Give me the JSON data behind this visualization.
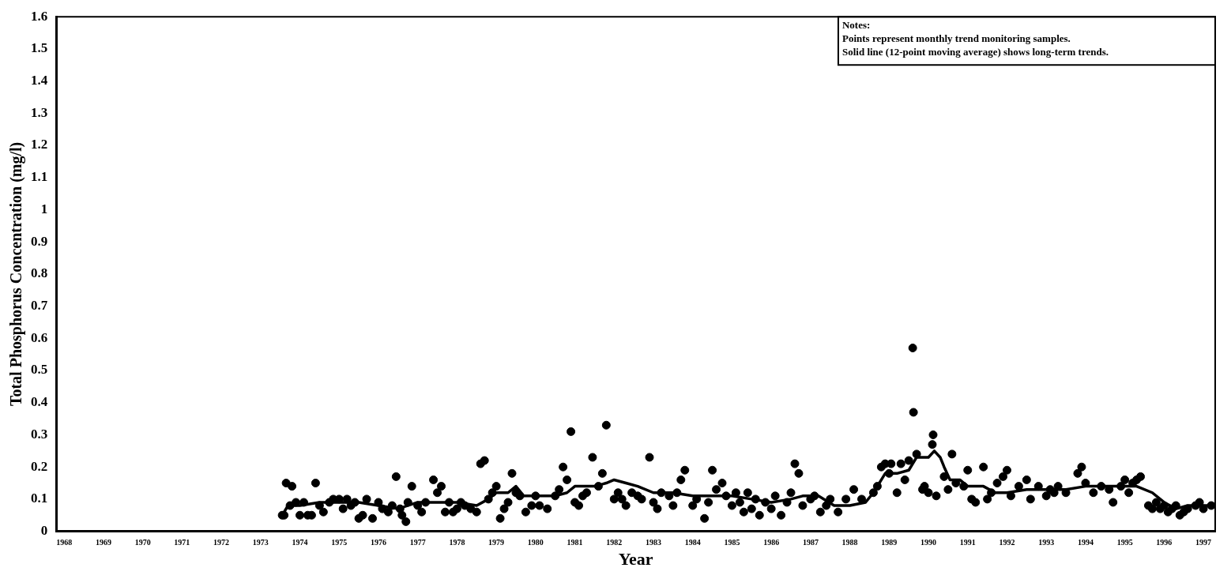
{
  "chart_data": {
    "type": "scatter",
    "xlabel": "Year",
    "ylabel": "Total Phosphorus Concentration (mg/l)",
    "annotations": [
      "Notes:",
      "Points represent monthly trend monitoring samples.",
      "Solid line (12-point moving average) shows long-term trends."
    ],
    "xlim": [
      1967.8,
      1997.3
    ],
    "xticks": [
      1968,
      1969,
      1970,
      1971,
      1972,
      1973,
      1974,
      1975,
      1976,
      1977,
      1978,
      1979,
      1980,
      1981,
      1982,
      1983,
      1984,
      1985,
      1986,
      1987,
      1988,
      1989,
      1990,
      1991,
      1992,
      1993,
      1994,
      1995,
      1996,
      1997
    ],
    "ylim": [
      0,
      1.6
    ],
    "yticks": [
      0,
      0.1,
      0.2,
      0.3,
      0.4,
      0.5,
      0.6,
      0.7,
      0.8,
      0.9,
      1,
      1.1,
      1.2,
      1.3,
      1.4,
      1.5,
      1.6
    ],
    "grid": false,
    "legend": false,
    "marker": "circle",
    "series": [
      {
        "color": "#000000",
        "x": [
          1973.55,
          1973.6,
          1973.65,
          1973.75,
          1973.8,
          1973.9,
          1974.0,
          1974.1,
          1974.2,
          1974.3,
          1974.4,
          1974.5,
          1974.6,
          1974.75,
          1974.85,
          1975.0,
          1975.1,
          1975.2,
          1975.3,
          1975.4,
          1975.5,
          1975.6,
          1975.7,
          1975.85,
          1976.0,
          1976.1,
          1976.25,
          1976.35,
          1976.45,
          1976.55,
          1976.6,
          1976.7,
          1976.75,
          1976.85,
          1977.0,
          1977.1,
          1977.2,
          1977.4,
          1977.5,
          1977.6,
          1977.7,
          1977.8,
          1977.9,
          1978.0,
          1978.1,
          1978.2,
          1978.35,
          1978.5,
          1978.6,
          1978.7,
          1978.8,
          1978.9,
          1979.0,
          1979.1,
          1979.2,
          1979.3,
          1979.4,
          1979.5,
          1979.6,
          1979.75,
          1979.9,
          1980.0,
          1980.1,
          1980.3,
          1980.5,
          1980.6,
          1980.7,
          1980.8,
          1980.9,
          1981.0,
          1981.1,
          1981.2,
          1981.3,
          1981.45,
          1981.6,
          1981.7,
          1981.8,
          1982.0,
          1982.1,
          1982.2,
          1982.3,
          1982.45,
          1982.6,
          1982.7,
          1982.9,
          1983.0,
          1983.1,
          1983.2,
          1983.4,
          1983.5,
          1983.6,
          1983.7,
          1983.8,
          1984.0,
          1984.1,
          1984.3,
          1984.4,
          1984.5,
          1984.6,
          1984.75,
          1984.85,
          1985.0,
          1985.1,
          1985.2,
          1985.3,
          1985.4,
          1985.5,
          1985.6,
          1985.7,
          1985.85,
          1986.0,
          1986.1,
          1986.25,
          1986.4,
          1986.5,
          1986.6,
          1986.7,
          1986.8,
          1987.0,
          1987.1,
          1987.25,
          1987.4,
          1987.5,
          1987.7,
          1987.9,
          1988.1,
          1988.3,
          1988.6,
          1988.7,
          1988.8,
          1988.9,
          1989.0,
          1989.05,
          1989.2,
          1989.3,
          1989.4,
          1989.5,
          1989.6,
          1989.62,
          1989.7,
          1989.85,
          1989.9,
          1990.0,
          1990.1,
          1990.12,
          1990.2,
          1990.4,
          1990.5,
          1990.6,
          1990.7,
          1990.9,
          1991.0,
          1991.1,
          1991.2,
          1991.4,
          1991.5,
          1991.6,
          1991.75,
          1991.9,
          1992.0,
          1992.1,
          1992.3,
          1992.5,
          1992.6,
          1992.8,
          1993.0,
          1993.1,
          1993.2,
          1993.3,
          1993.5,
          1993.8,
          1993.9,
          1994.0,
          1994.2,
          1994.4,
          1994.6,
          1994.7,
          1994.9,
          1995.0,
          1995.1,
          1995.2,
          1995.3,
          1995.4,
          1995.6,
          1995.7,
          1995.8,
          1995.9,
          1996.0,
          1996.1,
          1996.2,
          1996.3,
          1996.4,
          1996.5,
          1996.6,
          1996.8,
          1996.9,
          1997.0,
          1997.2
        ],
        "values": [
          0.05,
          0.05,
          0.15,
          0.08,
          0.14,
          0.09,
          0.05,
          0.09,
          0.05,
          0.05,
          0.15,
          0.08,
          0.06,
          0.09,
          0.1,
          0.1,
          0.07,
          0.1,
          0.08,
          0.09,
          0.04,
          0.05,
          0.1,
          0.04,
          0.09,
          0.07,
          0.06,
          0.08,
          0.17,
          0.07,
          0.05,
          0.03,
          0.09,
          0.14,
          0.08,
          0.06,
          0.09,
          0.16,
          0.12,
          0.14,
          0.06,
          0.09,
          0.06,
          0.07,
          0.09,
          0.08,
          0.07,
          0.06,
          0.21,
          0.22,
          0.1,
          0.12,
          0.14,
          0.04,
          0.07,
          0.09,
          0.18,
          0.12,
          0.11,
          0.06,
          0.08,
          0.11,
          0.08,
          0.07,
          0.11,
          0.13,
          0.2,
          0.16,
          0.31,
          0.09,
          0.08,
          0.11,
          0.12,
          0.23,
          0.14,
          0.18,
          0.33,
          0.1,
          0.12,
          0.1,
          0.08,
          0.12,
          0.11,
          0.1,
          0.23,
          0.09,
          0.07,
          0.12,
          0.11,
          0.08,
          0.12,
          0.16,
          0.19,
          0.08,
          0.1,
          0.04,
          0.09,
          0.19,
          0.13,
          0.15,
          0.11,
          0.08,
          0.12,
          0.09,
          0.06,
          0.12,
          0.07,
          0.1,
          0.05,
          0.09,
          0.07,
          0.11,
          0.05,
          0.09,
          0.12,
          0.21,
          0.18,
          0.08,
          0.1,
          0.11,
          0.06,
          0.08,
          0.1,
          0.06,
          0.1,
          0.13,
          0.1,
          0.12,
          0.14,
          0.2,
          0.21,
          0.18,
          0.21,
          0.12,
          0.21,
          0.16,
          0.22,
          0.57,
          0.37,
          0.24,
          0.13,
          0.14,
          0.12,
          0.27,
          0.3,
          0.11,
          0.17,
          0.13,
          0.24,
          0.15,
          0.14,
          0.19,
          0.1,
          0.09,
          0.2,
          0.1,
          0.12,
          0.15,
          0.17,
          0.19,
          0.11,
          0.14,
          0.16,
          0.1,
          0.14,
          0.11,
          0.13,
          0.12,
          0.14,
          0.12,
          0.18,
          0.2,
          0.15,
          0.12,
          0.14,
          0.13,
          0.09,
          0.14,
          0.16,
          0.12,
          0.15,
          0.16,
          0.17,
          0.08,
          0.07,
          0.09,
          0.07,
          0.08,
          0.06,
          0.07,
          0.08,
          0.05,
          0.06,
          0.07,
          0.08,
          0.09,
          0.07,
          0.08
        ]
      },
      {
        "type": "line",
        "color": "#000000",
        "line_style": "solid",
        "marker": "none",
        "x": [
          1973.55,
          1973.7,
          1974.0,
          1974.5,
          1975.0,
          1975.5,
          1976.0,
          1976.5,
          1977.0,
          1977.5,
          1978.0,
          1978.5,
          1978.8,
          1979.0,
          1979.3,
          1979.5,
          1979.7,
          1980.0,
          1980.5,
          1980.8,
          1981.0,
          1981.5,
          1981.8,
          1982.0,
          1982.3,
          1982.6,
          1983.0,
          1983.5,
          1984.0,
          1984.5,
          1985.0,
          1985.5,
          1986.0,
          1986.5,
          1986.8,
          1987.2,
          1987.6,
          1988.0,
          1988.4,
          1988.6,
          1988.9,
          1989.2,
          1989.5,
          1989.7,
          1990.0,
          1990.15,
          1990.3,
          1990.4,
          1990.55,
          1990.8,
          1991.0,
          1991.4,
          1991.7,
          1992.0,
          1992.5,
          1993.0,
          1993.5,
          1994.0,
          1994.5,
          1995.0,
          1995.3,
          1995.7,
          1996.0,
          1996.3,
          1996.6,
          1997.0,
          1997.2
        ],
        "values": [
          0.05,
          0.08,
          0.08,
          0.09,
          0.09,
          0.09,
          0.08,
          0.07,
          0.09,
          0.09,
          0.09,
          0.08,
          0.1,
          0.12,
          0.12,
          0.14,
          0.11,
          0.11,
          0.11,
          0.12,
          0.14,
          0.14,
          0.15,
          0.16,
          0.15,
          0.14,
          0.12,
          0.12,
          0.11,
          0.11,
          0.11,
          0.1,
          0.09,
          0.1,
          0.11,
          0.11,
          0.08,
          0.08,
          0.09,
          0.12,
          0.18,
          0.18,
          0.19,
          0.23,
          0.23,
          0.25,
          0.23,
          0.2,
          0.16,
          0.16,
          0.14,
          0.14,
          0.12,
          0.12,
          0.13,
          0.13,
          0.13,
          0.14,
          0.14,
          0.14,
          0.14,
          0.12,
          0.09,
          0.07,
          0.08,
          0.08,
          0.08
        ]
      }
    ]
  }
}
